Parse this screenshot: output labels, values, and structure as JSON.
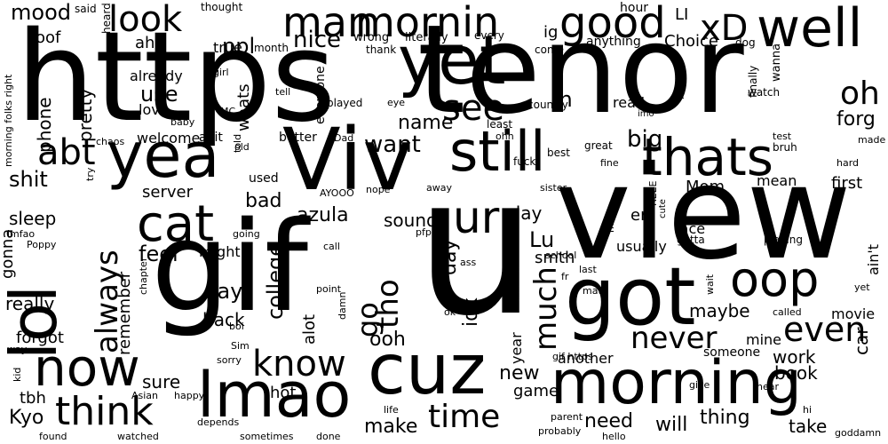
{
  "colors": {
    "background": "#ffffff",
    "text": "#000000"
  },
  "words": [
    "https",
    "tenor",
    "view",
    "u",
    "gif",
    "yet",
    "Viv",
    "yea",
    "lol",
    "got",
    "morning",
    "cuz",
    "lmao",
    "now",
    "still",
    "thats",
    "well",
    "cat",
    "mornin",
    "man",
    "good",
    "oop",
    "ur",
    "look",
    "abt",
    "xD",
    "think",
    "know",
    "see",
    "time",
    "even",
    "never",
    "always",
    "much",
    "oh",
    "tho",
    "go",
    "nice",
    "want",
    "big",
    "ppl",
    "rn",
    "mood",
    "shit",
    "name",
    "azula",
    "sleep",
    "feel",
    "say",
    "college",
    "day",
    "Lu",
    "ooh",
    "idk",
    "work",
    "make",
    "thing",
    "need",
    "will",
    "Kyo",
    "tbh",
    "new",
    "game",
    "alot",
    "sure",
    "remember",
    "back",
    "really",
    "forgot",
    "take",
    "book",
    "car",
    "ain't",
    "maybe",
    "play",
    "smth",
    "sound",
    "bad",
    "server",
    "use",
    "pretty",
    "phone",
    "oof",
    "ahh",
    "LI",
    "Choice",
    "ig",
    "forg",
    "mean",
    "first",
    "Mom",
    "face",
    "em",
    "usually",
    "hot",
    "might",
    "gonna",
    "movie",
    "mine",
    "someone",
    "another",
    "year",
    "already",
    "love",
    "whats",
    "abit",
    "welcome",
    "better",
    "true",
    "used",
    "everyone",
    "read",
    "anything",
    "hour",
    "every",
    "month",
    "thought",
    "said",
    "heard",
    "literally",
    "wrong",
    "thank",
    "come",
    "dog",
    "watch",
    "finally",
    "wanna",
    "bruh",
    "night",
    "imo",
    "country",
    "played",
    "least",
    "ohh",
    "best",
    "great",
    "test",
    "made",
    "hard",
    "fine",
    "fuck",
    "sister",
    "REEE",
    "cute",
    "gotta",
    "playing",
    "milf",
    "pfp",
    "school",
    "last",
    "math",
    "wait",
    "called",
    "yet",
    "fr",
    "nope",
    "away",
    "AYOOO",
    "ass",
    "call",
    "Dad",
    "told",
    "old",
    "chaos",
    "baby",
    "MC",
    "girl",
    "eye",
    "tell",
    "morning folks right",
    "try",
    "lmfao",
    "Poppy",
    "chapter",
    "going",
    "point",
    "damn",
    "boi",
    "ok",
    "Sim",
    "sorry",
    "way",
    "kid",
    "Asian",
    "happy",
    "gif https",
    "give",
    "hear",
    "hi",
    "goddamn",
    "hello",
    "probably",
    "parent",
    "life",
    "done",
    "sometimes",
    "depends",
    "watched",
    "found"
  ]
}
